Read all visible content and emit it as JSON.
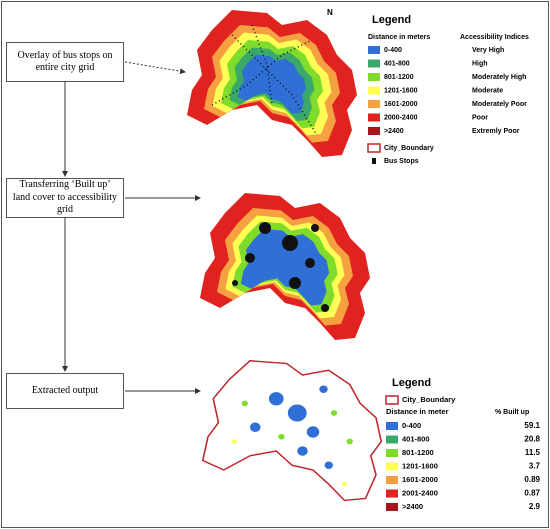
{
  "steps": [
    "Overlay of bus stops on entire city grid",
    "Transferring ‘Built up’ land cover to accessibility grid",
    "Extracted output"
  ],
  "legend1": {
    "title": "Legend",
    "column_headers": [
      "Distance in meters",
      "Accessibility Indices"
    ],
    "rows": [
      [
        "0-400",
        "Very High"
      ],
      [
        "401-800",
        "High"
      ],
      [
        "801-1200",
        "Moderately High"
      ],
      [
        "1201-1600",
        "Moderate"
      ],
      [
        "1601-2000",
        "Moderately Poor"
      ],
      [
        "2000-2400",
        "Poor"
      ],
      [
        ">2400",
        "Extremly Poor"
      ]
    ],
    "city_boundary": "City_Boundary",
    "bus_stops": "Bus Stops"
  },
  "legend2": {
    "title": "Legend",
    "city_boundary": "City_Boundary",
    "column_headers": [
      "Distance in meter",
      "% Built up"
    ],
    "rows": [
      [
        "0-400",
        "59.1"
      ],
      [
        "401-800",
        "20.8"
      ],
      [
        "801-1200",
        "11.5"
      ],
      [
        "1201-1600",
        "3.7"
      ],
      [
        "1601-2000",
        "0.89"
      ],
      [
        "2001-2400",
        "0.87"
      ],
      [
        ">2400",
        "2.9"
      ]
    ]
  }
}
